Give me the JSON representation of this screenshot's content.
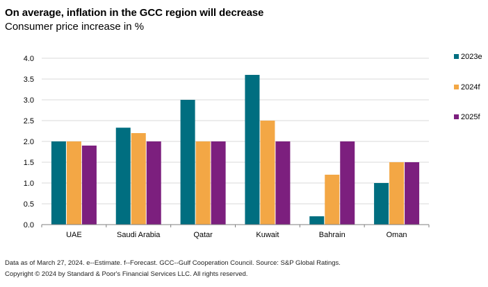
{
  "header": {
    "title": "On average, inflation in the GCC region will decrease",
    "subtitle": "Consumer price increase in %"
  },
  "footer": {
    "note": "Data as of March 27, 2024. e--Estimate. f--Forecast. GCC--Gulf Cooperation Council. Source: S&P Global Ratings.",
    "copyright": "Copyright © 2024 by Standard & Poor's Financial Services LLC. All rights reserved."
  },
  "colors": {
    "2023e": "#006e80",
    "2024f": "#f3a745",
    "2025f": "#7c1f7e"
  },
  "chart_data": {
    "type": "bar",
    "title": "On average, inflation in the GCC region will decrease",
    "subtitle": "Consumer price increase in %",
    "categories": [
      "UAE",
      "Saudi Arabia",
      "Qatar",
      "Kuwait",
      "Bahrain",
      "Oman"
    ],
    "series": [
      {
        "name": "2023e",
        "values": [
          2.0,
          2.33,
          3.0,
          3.6,
          0.2,
          1.0
        ]
      },
      {
        "name": "2024f",
        "values": [
          2.0,
          2.2,
          2.0,
          2.5,
          1.2,
          1.5
        ]
      },
      {
        "name": "2025f",
        "values": [
          1.9,
          2.0,
          2.0,
          2.0,
          2.0,
          1.5
        ]
      }
    ],
    "ylim": [
      0,
      4.0
    ],
    "yticks": [
      "0.0",
      "0.5",
      "1.0",
      "1.5",
      "2.0",
      "2.5",
      "3.0",
      "3.5",
      "4.0"
    ],
    "grid": true,
    "legend_position": "right"
  }
}
